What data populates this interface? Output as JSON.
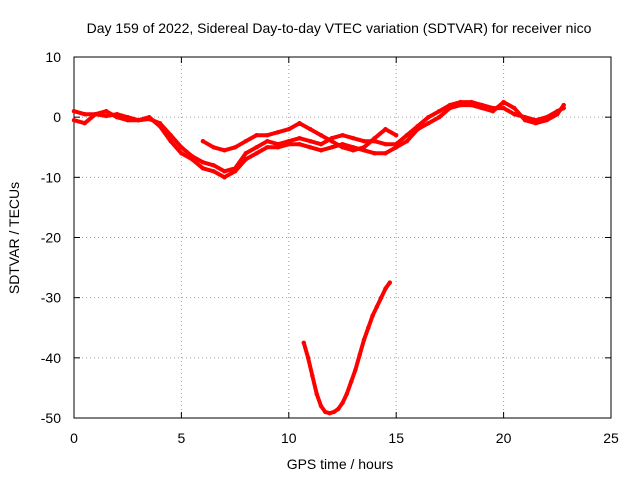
{
  "chart_data": {
    "type": "scatter",
    "title": "Day 159 of 2022, Sidereal Day-to-day VTEC variation (SDTVAR) for receiver nico",
    "xlabel": "GPS time / hours",
    "ylabel": "SDTVAR / TECUs",
    "xlim": [
      0,
      25
    ],
    "ylim": [
      -50,
      10
    ],
    "xticks": [
      0,
      5,
      10,
      15,
      20,
      25
    ],
    "yticks": [
      10,
      0,
      -10,
      -20,
      -30,
      -40,
      -50
    ],
    "grid": true,
    "series_color": "#ff0000",
    "series": [
      {
        "name": "trace-a",
        "x": [
          0,
          0.5,
          1,
          1.5,
          2,
          2.5,
          3,
          3.5,
          4,
          4.5,
          5,
          5.5,
          6,
          6.5,
          7,
          7.5,
          8,
          8.5,
          9,
          9.5,
          10,
          10.5,
          11,
          11.5,
          12,
          12.5,
          13,
          13.5,
          14,
          14.5,
          15,
          15.5,
          16,
          16.5,
          17,
          17.5,
          18,
          18.5,
          19,
          19.5,
          20,
          20.5,
          21,
          21.5,
          22,
          22.5,
          22.8
        ],
        "y": [
          1,
          0.5,
          0.5,
          0.2,
          0.5,
          0,
          -0.5,
          -0.3,
          -1,
          -3,
          -5,
          -6.5,
          -7.5,
          -8,
          -9,
          -8.5,
          -6,
          -5,
          -4,
          -4.5,
          -4,
          -3.5,
          -4,
          -4.5,
          -3.5,
          -3,
          -3.5,
          -4,
          -4,
          -4.5,
          -4.5,
          -3,
          -1.5,
          0,
          1,
          2,
          2.5,
          2.5,
          2,
          1.5,
          1.5,
          0.5,
          0,
          -0.5,
          0,
          1,
          1.5
        ]
      },
      {
        "name": "trace-b",
        "x": [
          0,
          0.5,
          1,
          1.5,
          2,
          2.5,
          3,
          3.5,
          4,
          4.5,
          5,
          5.5,
          6,
          6.5,
          7,
          7.5,
          8,
          8.5,
          9,
          9.5,
          10,
          10.5,
          11,
          11.5,
          12,
          12.5,
          13,
          13.5,
          14,
          14.5,
          15,
          15.5,
          16,
          16.5,
          17,
          17.5,
          18,
          18.5,
          19,
          19.5,
          20,
          20.5,
          21,
          21.5,
          22,
          22.5,
          22.8
        ],
        "y": [
          -0.5,
          -1,
          0.5,
          1,
          0,
          -0.5,
          -0.5,
          0,
          -1.5,
          -4,
          -6,
          -7,
          -8.5,
          -9,
          -10,
          -9,
          -7,
          -6,
          -5,
          -5,
          -4.5,
          -4.5,
          -5,
          -5.5,
          -5,
          -4.5,
          -5,
          -5.5,
          -6,
          -6,
          -5,
          -4,
          -2,
          -1,
          0,
          1.5,
          2,
          2,
          1.5,
          1,
          2.5,
          1.5,
          -0.5,
          -1,
          -0.5,
          0.5,
          2
        ]
      },
      {
        "name": "trace-c",
        "x": [
          6,
          6.5,
          7,
          7.5,
          8,
          8.5,
          9,
          9.5,
          10,
          10.5,
          11,
          11.5,
          12,
          12.5,
          13,
          13.5,
          14,
          14.5,
          15
        ],
        "y": [
          -4,
          -5,
          -5.5,
          -5,
          -4,
          -3,
          -3,
          -2.5,
          -2,
          -1,
          -2,
          -3,
          -4,
          -5,
          -5.5,
          -5,
          -3.5,
          -2,
          -3
        ]
      },
      {
        "name": "trace-d",
        "x": [
          10.7,
          10.9,
          11.1,
          11.3,
          11.5,
          11.7,
          11.9,
          12.1,
          12.3,
          12.5,
          12.7,
          12.9,
          13.1,
          13.3,
          13.5,
          13.7,
          13.9,
          14.1,
          14.3,
          14.5,
          14.7
        ],
        "y": [
          -37.5,
          -40,
          -43,
          -46,
          -48,
          -49,
          -49.2,
          -49,
          -48.5,
          -47.5,
          -46,
          -44,
          -42,
          -39.5,
          -37,
          -35,
          -33,
          -31.5,
          -30,
          -28.5,
          -27.5
        ]
      }
    ]
  }
}
